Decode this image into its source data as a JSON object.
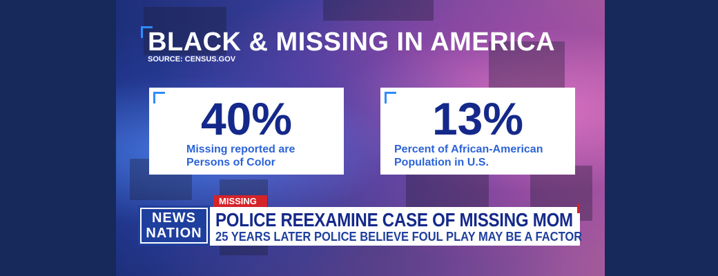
{
  "graphic": {
    "title": "BLACK & MISSING IN AMERICA",
    "source": "SOURCE: CENSUS.GOV",
    "stats": [
      {
        "value": "40%",
        "line1": "Missing reported are",
        "line2": "Persons of Color"
      },
      {
        "value": "13%",
        "line1": "Percent of African-American",
        "line2": "Population in U.S."
      }
    ]
  },
  "lower_third": {
    "logo_top": "NEWS",
    "logo_bottom": "NATION",
    "tag": "MISSING",
    "headline": "POLICE REEXAMINE CASE OF MISSING MOM",
    "subhead": "25 YEARS LATER POLICE BELIEVE FOUL PLAY MAY BE A FACTOR"
  },
  "colors": {
    "frame": "#17295a",
    "stat_blue": "#15298a",
    "desc_blue": "#2c63d8",
    "accent_red": "#d5232a",
    "logo_blue": "#1f3f9e"
  }
}
